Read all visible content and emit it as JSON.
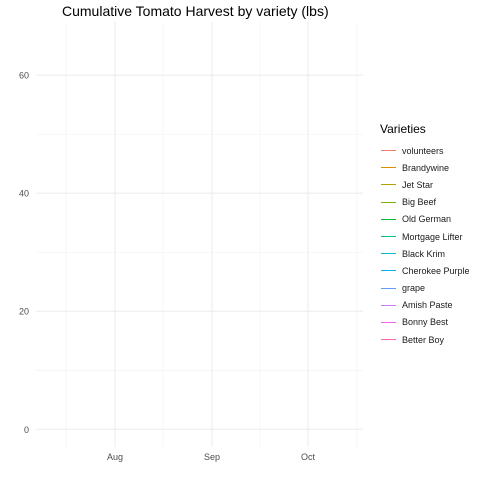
{
  "chart_data": {
    "type": "line",
    "title": "Cumulative Tomato Harvest by variety (lbs)",
    "xlabel": "",
    "ylabel": "",
    "x_ticks": [
      "Aug",
      "Sep",
      "Oct"
    ],
    "y_ticks": [
      0,
      20,
      40,
      60
    ],
    "ylim": [
      -3,
      69
    ],
    "grid": true,
    "legend": {
      "title": "Varieties",
      "position": "right"
    },
    "series": [
      {
        "name": "volunteers",
        "color": "#F8766D",
        "values": []
      },
      {
        "name": "Brandywine",
        "color": "#DE8C00",
        "values": []
      },
      {
        "name": "Jet Star",
        "color": "#B79F00",
        "values": []
      },
      {
        "name": "Big Beef",
        "color": "#7CAE00",
        "values": []
      },
      {
        "name": "Old German",
        "color": "#00BA38",
        "values": []
      },
      {
        "name": "Mortgage Lifter",
        "color": "#00C08B",
        "values": []
      },
      {
        "name": "Black Krim",
        "color": "#00BFC4",
        "values": []
      },
      {
        "name": "Cherokee Purple",
        "color": "#00B4F0",
        "values": []
      },
      {
        "name": "grape",
        "color": "#619CFF",
        "values": []
      },
      {
        "name": "Amish Paste",
        "color": "#C77CFF",
        "values": []
      },
      {
        "name": "Bonny Best",
        "color": "#F564E3",
        "values": []
      },
      {
        "name": "Better Boy",
        "color": "#FF64B0",
        "values": []
      }
    ]
  }
}
